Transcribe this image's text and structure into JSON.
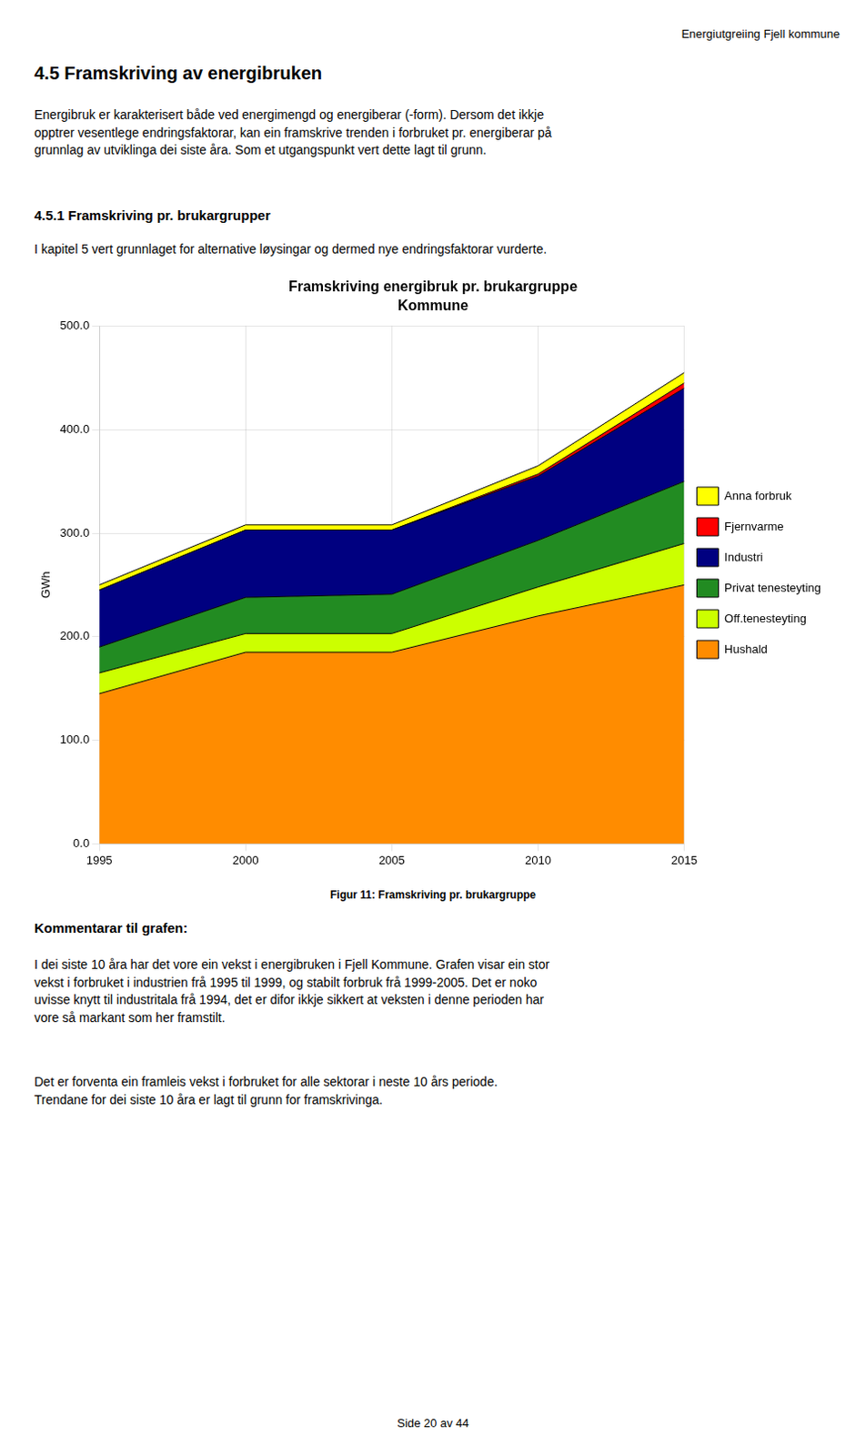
{
  "header_text": "Energiutgreiing Fjell kommune",
  "section_title": "4.5  Framskriving av energibruken",
  "section_body1": "Energibruk er karakterisert både ved energimengd og energiberar (-form). Dersom det ikkje\nopptrer vesentlege endringsfaktorar, kan ein framskrive trenden i forbruket pr. energiberar på\ngrunnlag av utviklinga dei siste åra. Som et utgangspunkt vert dette lagt til grunn.",
  "subsection_title": "4.5.1  Framskriving pr. brukargrupper",
  "subsection_body": "I kapitel 5 vert grunnlaget for alternative løysingar og dermed nye endringsfaktorar vurderte.",
  "figure_caption": "Figur 11: Framskriving pr. brukargruppe",
  "comment_title": "Kommentarar til grafen:",
  "comment_body1": "I dei siste 10 åra har det vore ein vekst i energibruken i Fjell Kommune. Grafen visar ein stor\nvekst i forbruket i industrien frå 1995 til 1999, og stabilt forbruk frå 1999-2005. Det er noko\nuvisse knytt til industritala frå 1994, det er difor ikkje sikkert at veksten i denne perioden har\nvore så markant som her framstilt.",
  "comment_body2": "Det er forventa ein framleis vekst i forbruket for alle sektorar i neste 10 års periode.\nTrendane for dei siste 10 åra er lagt til grunn for framskrivinga.",
  "footer_text": "Side 20 av 44",
  "chart_data": {
    "type": "area",
    "title": "Framskriving energibruk pr. brukargruppe",
    "subtitle": "Kommune",
    "ylabel": "GWh",
    "x": [
      1995,
      2000,
      2005,
      2010,
      2015
    ],
    "xlim": [
      1995,
      2015
    ],
    "xticks": [
      1995,
      2000,
      2005,
      2010,
      2015
    ],
    "ylim": [
      0,
      500
    ],
    "yticks": [
      {
        "value": 0,
        "label": "0.0"
      },
      {
        "value": 100,
        "label": "100.0"
      },
      {
        "value": 200,
        "label": "200.0"
      },
      {
        "value": 300,
        "label": "300.0"
      },
      {
        "value": 400,
        "label": "400.0"
      },
      {
        "value": 500,
        "label": "500.0"
      }
    ],
    "stacked": true,
    "grid": true,
    "legend": "right",
    "series": [
      {
        "name": "Hushald",
        "color": "#FF8C00",
        "values": [
          145,
          185,
          185,
          220,
          250
        ]
      },
      {
        "name": "Off.tenesteyting",
        "color": "#CCFF00",
        "values": [
          20,
          18,
          18,
          28,
          40
        ]
      },
      {
        "name": "Privat tenesteyting",
        "color": "#228B22",
        "values": [
          25,
          35,
          38,
          45,
          60
        ]
      },
      {
        "name": "Industri",
        "color": "#000080",
        "values": [
          55,
          65,
          62,
          62,
          90
        ]
      },
      {
        "name": "Fjernvarme",
        "color": "#FF0000",
        "values": [
          0,
          0,
          0,
          2,
          5
        ]
      },
      {
        "name": "Anna forbruk",
        "color": "#FFFF00",
        "values": [
          5,
          5,
          5,
          8,
          10
        ]
      }
    ]
  }
}
